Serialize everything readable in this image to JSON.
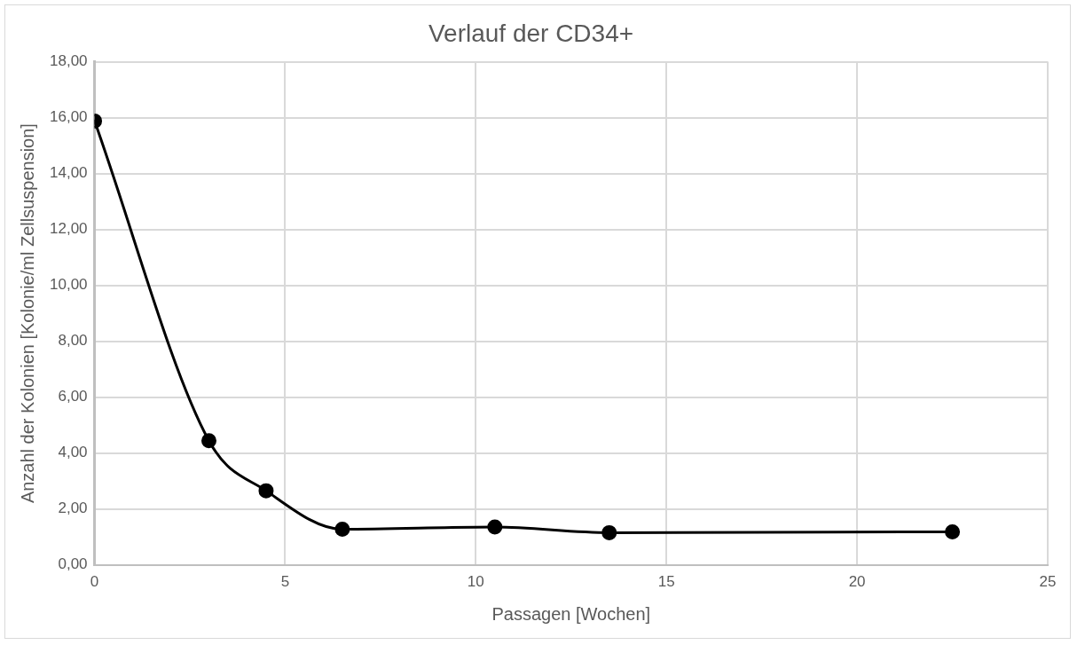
{
  "chart_data": {
    "type": "line",
    "title": "Verlauf der CD34+",
    "xlabel": "Passagen [Wochen]",
    "ylabel": "Anzahl der Kolonien [Kolonie/ml Zellsuspension]",
    "x": [
      0,
      3,
      4.5,
      6.5,
      10.5,
      13.5,
      22.5
    ],
    "series": [
      {
        "color": "#000000",
        "values": [
          15.88,
          4.44,
          2.65,
          1.27,
          1.35,
          1.15,
          1.18
        ]
      }
    ],
    "xlim": [
      0,
      25
    ],
    "xticks": [
      0,
      5,
      10,
      15,
      20,
      25
    ],
    "ylim": [
      0,
      18
    ],
    "yticks": [
      {
        "value": 0,
        "label": "0,00"
      },
      {
        "value": 2,
        "label": "2,00"
      },
      {
        "value": 4,
        "label": "4,00"
      },
      {
        "value": 6,
        "label": "6,00"
      },
      {
        "value": 8,
        "label": "8,00"
      },
      {
        "value": 10,
        "label": "10,00"
      },
      {
        "value": 12,
        "label": "12,00"
      },
      {
        "value": 14,
        "label": "14,00"
      },
      {
        "value": 16,
        "label": "16,00"
      },
      {
        "value": 18,
        "label": "18,00"
      }
    ],
    "grid": true,
    "legend": false,
    "marker": "circle",
    "line_style": "solid"
  }
}
